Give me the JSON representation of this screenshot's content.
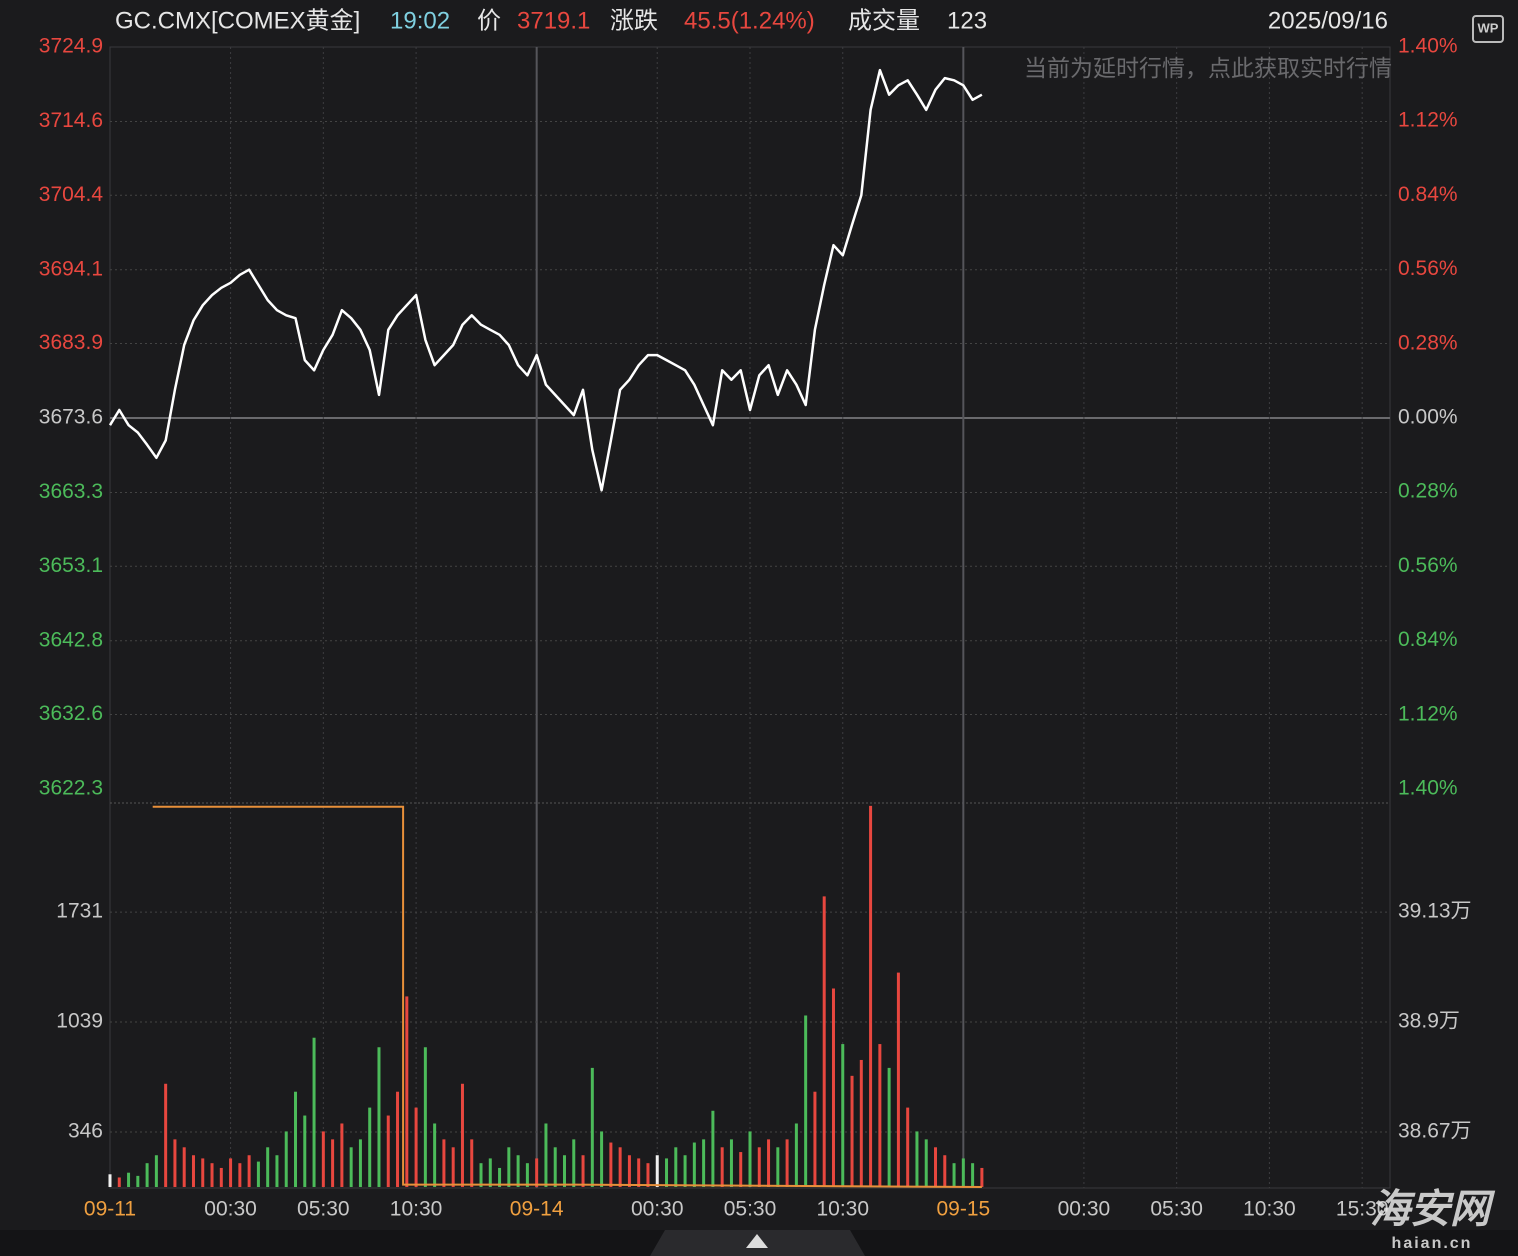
{
  "header": {
    "symbol": "GC.CMX[COMEX黄金]",
    "time": "19:02",
    "price_label": "价",
    "price": 3719.1,
    "change_label": "涨跌",
    "change": "45.5(1.24%)",
    "volume_label": "成交量",
    "volume": 123,
    "date": "2025/09/16",
    "notice": "当前为延时行情，点此获取实时行情",
    "icon": "WP"
  },
  "watermark": {
    "name": "海安网",
    "site": "haian.cn"
  },
  "chart_data": [
    {
      "type": "line",
      "color": "#ffffff",
      "up_color": "#e8473f",
      "down_color": "#4cbb5a",
      "flat_color": "#c8c8c8",
      "base": 3673.6,
      "xlim": [
        0,
        69
      ],
      "xticks": [
        {
          "value": 0,
          "label": "09-11"
        },
        {
          "value": 6.5,
          "label": "00:30"
        },
        {
          "value": 11.5,
          "label": "05:30"
        },
        {
          "value": 16.5,
          "label": "10:30"
        },
        {
          "value": 23,
          "label": "09-14"
        },
        {
          "value": 29.5,
          "label": "00:30"
        },
        {
          "value": 34.5,
          "label": "05:30"
        },
        {
          "value": 39.5,
          "label": "10:30"
        },
        {
          "value": 46,
          "label": "09-15"
        },
        {
          "value": 52.5,
          "label": "00:30"
        },
        {
          "value": 57.5,
          "label": "05:30"
        },
        {
          "value": 62.5,
          "label": "10:30"
        },
        {
          "value": 67.5,
          "label": "15:30"
        }
      ],
      "ylim": [
        3622.3,
        3724.9
      ],
      "yticks": [
        3724.9,
        3714.6,
        3704.4,
        3694.1,
        3683.9,
        3673.6,
        3663.3,
        3653.1,
        3642.8,
        3632.6,
        3622.3
      ],
      "y2lim": [
        -1.4,
        1.4
      ],
      "y2ticks": [
        {
          "value": 1.4,
          "label": "1.40%"
        },
        {
          "value": 1.12,
          "label": "1.12%"
        },
        {
          "value": 0.84,
          "label": "0.84%"
        },
        {
          "value": 0.56,
          "label": "0.56%"
        },
        {
          "value": 0.28,
          "label": "0.28%"
        },
        {
          "value": 0,
          "label": "0.00%"
        },
        {
          "value": -0.28,
          "label": "0.28%"
        },
        {
          "value": -0.56,
          "label": "0.56%"
        },
        {
          "value": -0.84,
          "label": "0.84%"
        },
        {
          "value": -1.12,
          "label": "1.12%"
        },
        {
          "value": -1.4,
          "label": "1.40%"
        }
      ],
      "x": [
        0,
        0.5,
        1,
        1.5,
        2,
        2.5,
        3,
        3.5,
        4,
        4.5,
        5,
        5.5,
        6,
        6.5,
        7,
        7.5,
        8,
        8.5,
        9,
        9.5,
        10,
        10.5,
        11,
        11.5,
        12,
        12.5,
        13,
        13.5,
        14,
        14.5,
        15,
        15.5,
        16,
        16.5,
        17,
        17.5,
        18,
        18.5,
        19,
        19.5,
        20,
        20.5,
        21,
        21.5,
        22,
        22.5,
        23,
        23.5,
        24,
        24.5,
        25,
        25.5,
        26,
        26.5,
        27,
        27.5,
        28,
        28.5,
        29,
        29.5,
        30,
        30.5,
        31,
        31.5,
        32,
        32.5,
        33,
        33.5,
        34,
        34.5,
        35,
        35.5,
        36,
        36.5,
        37,
        37.5,
        38,
        38.5,
        39,
        39.5,
        40,
        40.5,
        41,
        41.5,
        42,
        42.5,
        43,
        43.5,
        44,
        44.5,
        45,
        45.5,
        46,
        46.5,
        47
      ],
      "values": [
        3672.6,
        3674.7,
        3672.6,
        3671.6,
        3669.9,
        3668.1,
        3670.5,
        3677.5,
        3683.7,
        3687.1,
        3689.2,
        3690.6,
        3691.6,
        3692.3,
        3693.4,
        3694.1,
        3692.0,
        3689.9,
        3688.5,
        3687.8,
        3687.4,
        3681.6,
        3680.2,
        3683.0,
        3685.1,
        3688.5,
        3687.4,
        3685.8,
        3683.0,
        3676.8,
        3685.8,
        3687.8,
        3689.2,
        3690.6,
        3684.4,
        3680.9,
        3682.3,
        3683.7,
        3686.5,
        3687.8,
        3686.5,
        3685.8,
        3685.1,
        3683.7,
        3680.9,
        3679.5,
        3682.3,
        3678.2,
        3676.8,
        3675.4,
        3674.0,
        3677.5,
        3669.2,
        3663.6,
        3670.5,
        3677.5,
        3678.9,
        3680.9,
        3682.3,
        3682.3,
        3681.6,
        3680.9,
        3680.2,
        3678.2,
        3675.4,
        3672.6,
        3680.2,
        3678.9,
        3680.2,
        3674.7,
        3679.5,
        3680.9,
        3676.8,
        3680.2,
        3678.2,
        3675.4,
        3685.8,
        3692.0,
        3697.5,
        3696.1,
        3700.3,
        3704.4,
        3716.2,
        3721.7,
        3718.3,
        3719.6,
        3720.3,
        3718.3,
        3716.2,
        3719.0,
        3720.6,
        3720.3,
        3719.6,
        3717.6,
        3718.3
      ]
    },
    {
      "type": "bar",
      "up_color": "#e8473f",
      "down_color": "#4cbb5a",
      "flat_color": "#f0f0f0",
      "xlim": [
        0,
        69
      ],
      "ylim": [
        0,
        2418
      ],
      "yticks": [
        346,
        1039,
        1731
      ],
      "y2lim": [
        38.555,
        39.358
      ],
      "y2ticks": [
        {
          "value": 38.67,
          "label": "38.67万"
        },
        {
          "value": 38.9,
          "label": "38.9万"
        },
        {
          "value": 39.13,
          "label": "39.13万"
        }
      ],
      "x": [
        0,
        0.5,
        1,
        1.5,
        2,
        2.5,
        3,
        3.5,
        4,
        4.5,
        5,
        5.5,
        6,
        6.5,
        7,
        7.5,
        8,
        8.5,
        9,
        9.5,
        10,
        10.5,
        11,
        11.5,
        12,
        12.5,
        13,
        13.5,
        14,
        14.5,
        15,
        15.5,
        16,
        16.5,
        17,
        17.5,
        18,
        18.5,
        19,
        19.5,
        20,
        20.5,
        21,
        21.5,
        22,
        22.5,
        23,
        23.5,
        24,
        24.5,
        25,
        25.5,
        26,
        26.5,
        27,
        27.5,
        28,
        28.5,
        29,
        29.5,
        30,
        30.5,
        31,
        31.5,
        32,
        32.5,
        33,
        33.5,
        34,
        34.5,
        35,
        35.5,
        36,
        36.5,
        37,
        37.5,
        38,
        38.5,
        39,
        39.5,
        40,
        40.5,
        41,
        41.5,
        42,
        42.5,
        43,
        43.5,
        44,
        44.5,
        45,
        45.5,
        46,
        46.5,
        47
      ],
      "values": [
        80,
        60,
        90,
        70,
        150,
        200,
        650,
        300,
        250,
        200,
        180,
        150,
        120,
        180,
        150,
        200,
        160,
        250,
        200,
        350,
        600,
        450,
        940,
        350,
        300,
        400,
        250,
        300,
        500,
        880,
        450,
        600,
        1200,
        500,
        880,
        400,
        300,
        250,
        650,
        300,
        150,
        180,
        120,
        250,
        200,
        150,
        180,
        400,
        250,
        200,
        300,
        200,
        750,
        350,
        280,
        250,
        200,
        180,
        150,
        200,
        180,
        250,
        200,
        280,
        300,
        480,
        250,
        300,
        220,
        350,
        250,
        300,
        250,
        300,
        400,
        1080,
        600,
        1830,
        1250,
        900,
        700,
        800,
        2400,
        900,
        750,
        1350,
        500,
        350,
        300,
        250,
        200,
        150,
        180,
        150,
        120
      ],
      "line": {
        "color": "#e8903a",
        "axis": "y2",
        "x": [
          2.3,
          15.8,
          15.8,
          25,
          47
        ],
        "values": [
          39.35,
          39.35,
          38.56,
          38.56,
          38.555
        ]
      }
    }
  ]
}
